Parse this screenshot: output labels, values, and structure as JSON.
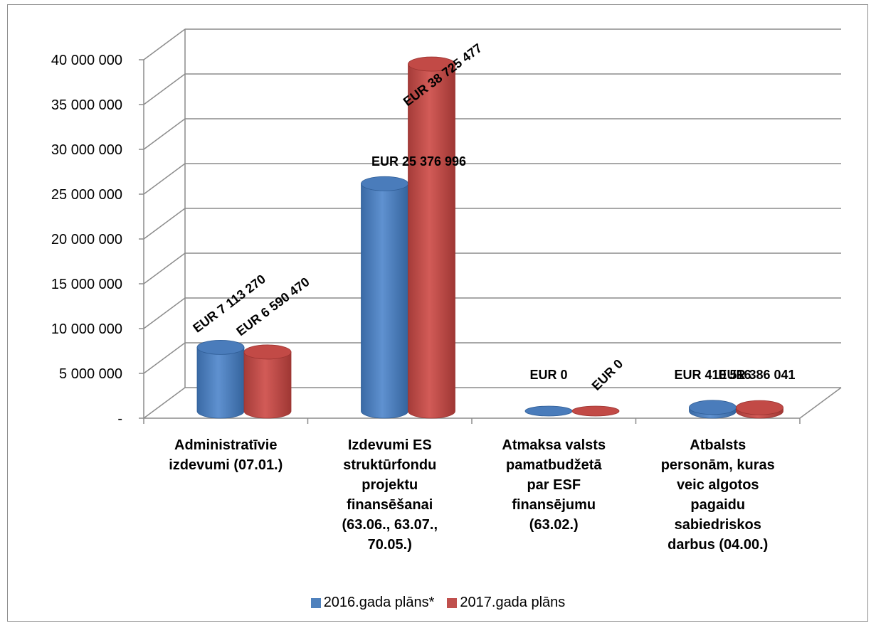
{
  "chart_data": {
    "type": "bar",
    "title": "",
    "xlabel": "",
    "ylabel": "",
    "ylim": [
      0,
      40000000
    ],
    "yticks": [
      {
        "value": 0,
        "label": "-"
      },
      {
        "value": 5000000,
        "label": "5 000 000"
      },
      {
        "value": 10000000,
        "label": "10 000 000"
      },
      {
        "value": 15000000,
        "label": "15 000 000"
      },
      {
        "value": 20000000,
        "label": "20 000 000"
      },
      {
        "value": 25000000,
        "label": "25 000 000"
      },
      {
        "value": 30000000,
        "label": "30 000 000"
      },
      {
        "value": 35000000,
        "label": "35 000 000"
      },
      {
        "value": 40000000,
        "label": "40 000 000"
      }
    ],
    "categories": [
      "Administratīvie\nizdevumi (07.01.)",
      "Izdevumi ES\nstruktūrfondu\nprojektu\nfinansēšanai\n(63.06., 63.07.,\n70.05.)",
      "Atmaksa valsts\npamatbudžetā\npar ESF\nfinansējumu\n(63.02.)",
      "Atbalsts\npersonām, kuras\nveic algotos\npagaidu\nsabiedriskos\ndarbus (04.00.)"
    ],
    "series": [
      {
        "name": "2016.gada plāns*",
        "color": "#4f81bd",
        "values": [
          7113270,
          25376996,
          0,
          410516
        ],
        "labels": [
          "EUR 7 113 270",
          "EUR 25 376 996",
          "EUR 0",
          "EUR 410 516"
        ]
      },
      {
        "name": "2017.gada plāns",
        "color": "#c0504d",
        "values": [
          6590470,
          38725477,
          0,
          386041
        ],
        "labels": [
          "EUR 6 590 470",
          "EUR 38 725 477",
          "EUR 0",
          "EUR 386 041"
        ]
      }
    ],
    "grid": true,
    "legend_position": "bottom"
  }
}
